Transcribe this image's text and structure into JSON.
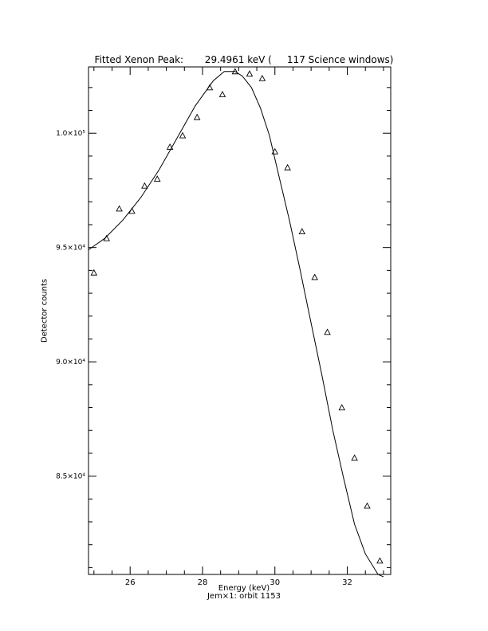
{
  "chart_data": {
    "type": "scatter",
    "title": "Fitted Xenon Peak:       29.4961 keV (     117 Science windows)",
    "xlabel": "Energy (keV)",
    "ylabel": "Detector counts",
    "subtitle": "Jem×1: orbit 1153",
    "xlim": [
      24.85,
      33.2
    ],
    "ylim": [
      80700,
      102900
    ],
    "x_ticks": [
      26,
      28,
      30,
      32
    ],
    "y_ticks": [
      85000,
      90000,
      95000,
      100000
    ],
    "y_tick_labels": [
      "8.5×10⁴",
      "9.0×10⁴",
      "9.5×10⁴",
      "1.0×10⁵"
    ],
    "series": [
      {
        "style": "triangles",
        "x": [
          25.0,
          25.35,
          25.7,
          26.05,
          26.4,
          26.75,
          27.1,
          27.45,
          27.85,
          28.2,
          28.55,
          28.9,
          29.3,
          29.65,
          30.0,
          30.35,
          30.75,
          31.1,
          31.45,
          31.85,
          32.2,
          32.55,
          32.9
        ],
        "y": [
          93900,
          95400,
          96700,
          96600,
          97700,
          98000,
          99400,
          99900,
          100700,
          102000,
          101700,
          102700,
          102600,
          102400,
          99200,
          98500,
          95700,
          93700,
          91300,
          88000,
          85800,
          83700,
          81300
        ]
      },
      {
        "style": "line",
        "x": [
          24.85,
          25.3,
          25.8,
          26.3,
          26.8,
          27.3,
          27.8,
          28.3,
          28.6,
          28.9,
          29.1,
          29.35,
          29.6,
          29.85,
          30.1,
          30.4,
          30.7,
          31.0,
          31.3,
          31.6,
          31.9,
          32.2,
          32.5,
          32.85,
          33.0
        ],
        "y": [
          94900,
          95400,
          96200,
          97200,
          98400,
          99800,
          101200,
          102300,
          102700,
          102700,
          102500,
          102000,
          101100,
          99900,
          98200,
          96200,
          94000,
          91700,
          89400,
          87000,
          84900,
          82900,
          81600,
          80700,
          80600
        ]
      }
    ]
  }
}
